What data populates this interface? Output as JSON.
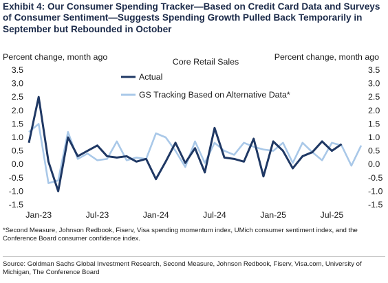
{
  "exhibit_title": "Exhibit 4: Our Consumer Spending Tracker—Based on Credit Card Data and Surveys of Consumer Sentiment—Suggests Spending Growth Pulled Back Temporarily in September but Rebounded in October",
  "footnote": "*Second Measure, Johnson Redbook, Fiserv, Visa spending momentum index, UMich consumer sentiment index, and the Conference Board consumer confidence index.",
  "source": "Source: Goldman Sachs Global Investment Research, Second Measure, Johnson Redbook, Fiserv, Visa.com, University of Michigan, The Conference Board",
  "chart_data": {
    "type": "line",
    "title": "Core Retail Sales",
    "ylabel_left": "Percent change, month ago",
    "ylabel_right": "Percent change, month ago",
    "ylim": [
      -1.5,
      3.5
    ],
    "yticks": [
      -1.5,
      -1.0,
      -0.5,
      0.0,
      0.5,
      1.0,
      1.5,
      2.0,
      2.5,
      3.0,
      3.5
    ],
    "ytick_labels": [
      "-1.5",
      "-1.0",
      "-0.5",
      "0.0",
      "0.5",
      "1.0",
      "1.5",
      "2.0",
      "2.5",
      "3.0",
      "3.5"
    ],
    "xticks": [
      "Jan-23",
      "Jul-23",
      "Jan-24",
      "Jul-24",
      "Jan-25",
      "Jul-25"
    ],
    "grid": false,
    "legend": "top-center",
    "x": [
      "2022-12",
      "2023-01",
      "2023-02",
      "2023-03",
      "2023-04",
      "2023-05",
      "2023-06",
      "2023-07",
      "2023-08",
      "2023-09",
      "2023-10",
      "2023-11",
      "2023-12",
      "2024-01",
      "2024-02",
      "2024-03",
      "2024-04",
      "2024-05",
      "2024-06",
      "2024-07",
      "2024-08",
      "2024-09",
      "2024-10",
      "2024-11",
      "2024-12",
      "2025-01",
      "2025-02",
      "2025-03",
      "2025-04",
      "2025-05",
      "2025-06",
      "2025-07",
      "2025-08",
      "2025-09",
      "2025-10"
    ],
    "series": [
      {
        "name": "Actual",
        "color": "#1f3864",
        "values": [
          0.8,
          2.5,
          0.1,
          -1.0,
          1.0,
          0.3,
          0.5,
          0.7,
          0.3,
          0.25,
          0.3,
          0.1,
          0.2,
          -0.55,
          0.1,
          0.8,
          0.05,
          0.6,
          -0.3,
          1.35,
          0.25,
          0.2,
          0.1,
          0.95,
          -0.45,
          0.85,
          0.5,
          -0.15,
          0.3,
          0.45,
          0.85,
          0.5,
          0.75,
          null,
          null
        ]
      },
      {
        "name": "GS Tracking Based on Alternative Data*",
        "color": "#a9c8e8",
        "values": [
          1.2,
          1.5,
          -0.7,
          -0.6,
          1.2,
          0.2,
          0.4,
          0.15,
          0.2,
          0.85,
          0.15,
          0.25,
          0.2,
          1.15,
          1.0,
          0.5,
          -0.1,
          0.85,
          0.05,
          0.8,
          0.5,
          0.35,
          0.8,
          0.65,
          0.55,
          0.5,
          0.8,
          0.05,
          0.8,
          0.45,
          0.15,
          0.8,
          0.7,
          -0.05,
          0.7
        ]
      }
    ]
  }
}
